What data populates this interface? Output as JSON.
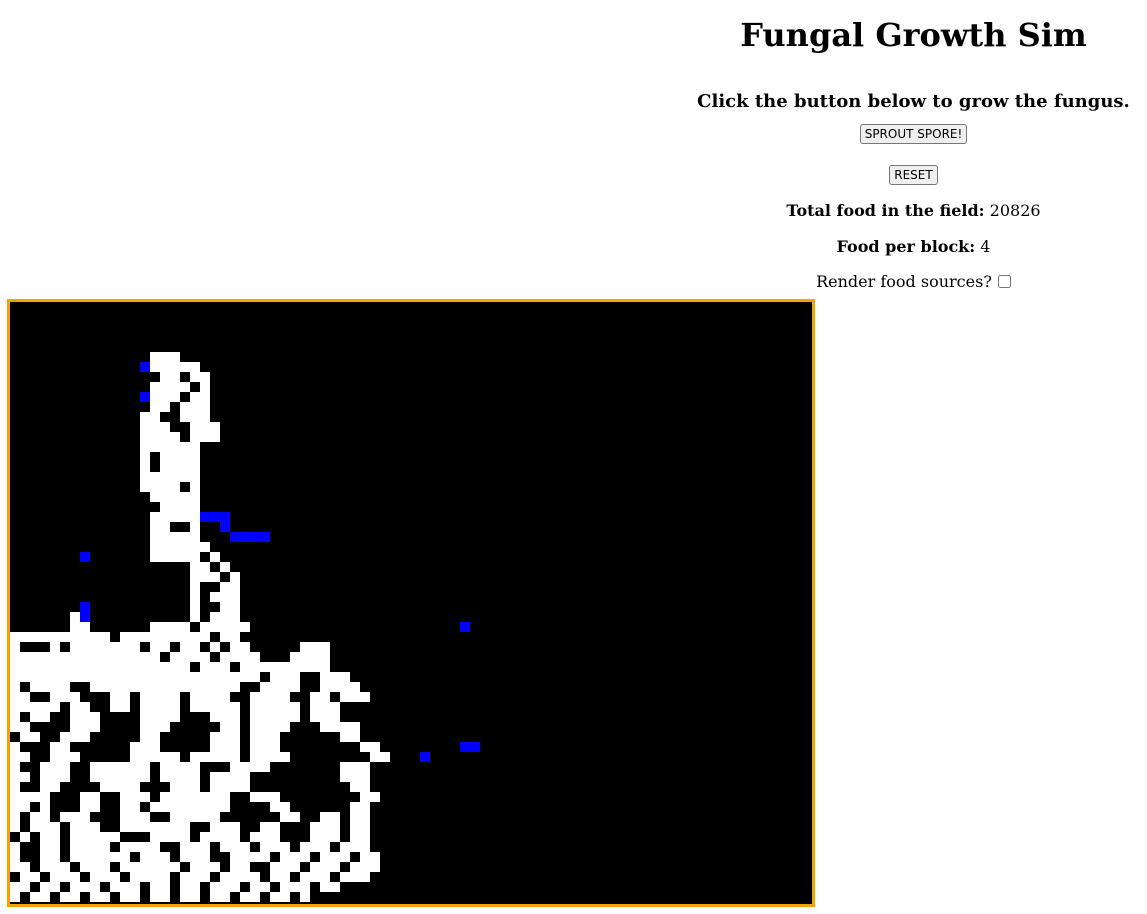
{
  "title": "Fungal Growth Sim",
  "subtitle": "Click the button below to grow the fungus.",
  "buttons": {
    "sprout": "SPROUT SPORE!",
    "reset": "RESET"
  },
  "stats": {
    "food_label": "Total food in the field:",
    "food_value": "20826",
    "per_block_label": "Food per block:",
    "per_block_value": "4",
    "render_label": "Render food sources?",
    "render_checked": false
  },
  "field": {
    "cols": 80,
    "rows": 60,
    "colors": {
      "background": "#000000",
      "fungus": "#ffffff",
      "tip": "#0000ff",
      "border": "#f5a300"
    },
    "fungus_rows": {
      "5": [
        [
          14,
          16
        ]
      ],
      "6": [
        [
          14,
          18
        ]
      ],
      "7": [
        [
          15,
          16
        ],
        [
          18,
          19
        ]
      ],
      "8": [
        [
          14,
          17
        ],
        [
          19,
          19
        ]
      ],
      "9": [
        [
          14,
          16
        ],
        [
          18,
          19
        ]
      ],
      "10": [
        [
          14,
          15
        ],
        [
          17,
          19
        ]
      ],
      "11": [
        [
          13,
          14
        ],
        [
          17,
          19
        ]
      ],
      "12": [
        [
          13,
          15
        ],
        [
          18,
          20
        ]
      ],
      "13": [
        [
          13,
          16
        ],
        [
          18,
          20
        ]
      ],
      "14": [
        [
          13,
          18
        ]
      ],
      "15": [
        [
          13,
          13
        ],
        [
          15,
          18
        ]
      ],
      "16": [
        [
          13,
          13
        ],
        [
          15,
          18
        ]
      ],
      "17": [
        [
          13,
          18
        ]
      ],
      "18": [
        [
          13,
          16
        ],
        [
          18,
          18
        ]
      ],
      "19": [
        [
          14,
          18
        ]
      ],
      "20": [
        [
          15,
          18
        ]
      ],
      "21": [
        [
          14,
          18
        ]
      ],
      "22": [
        [
          14,
          15
        ],
        [
          18,
          18
        ]
      ],
      "23": [
        [
          14,
          18
        ]
      ],
      "24": [
        [
          14,
          19
        ]
      ],
      "25": [
        [
          14,
          18
        ],
        [
          20,
          20
        ]
      ],
      "26": [
        [
          18,
          19
        ],
        [
          21,
          21
        ]
      ],
      "27": [
        [
          18,
          20
        ],
        [
          22,
          22
        ]
      ],
      "28": [
        [
          18,
          18
        ],
        [
          21,
          22
        ]
      ],
      "29": [
        [
          18,
          18
        ],
        [
          20,
          22
        ]
      ],
      "30": [
        [
          18,
          18
        ],
        [
          21,
          22
        ]
      ],
      "31": [
        [
          6,
          6
        ],
        [
          18,
          18
        ],
        [
          20,
          22
        ]
      ],
      "32": [
        [
          6,
          7
        ],
        [
          14,
          17
        ],
        [
          19,
          21
        ],
        [
          22,
          23
        ]
      ],
      "33": [
        [
          0,
          9
        ],
        [
          11,
          19
        ],
        [
          21,
          22
        ]
      ],
      "34": [
        [
          0,
          0
        ],
        [
          4,
          4
        ],
        [
          6,
          12
        ],
        [
          14,
          15
        ],
        [
          17,
          18
        ],
        [
          20,
          20
        ],
        [
          22,
          23
        ],
        [
          29,
          31
        ]
      ],
      "35": [
        [
          0,
          14
        ],
        [
          16,
          19
        ],
        [
          21,
          24
        ],
        [
          28,
          31
        ]
      ],
      "36": [
        [
          0,
          17
        ],
        [
          19,
          21
        ],
        [
          23,
          31
        ]
      ],
      "37": [
        [
          0,
          24
        ],
        [
          26,
          28
        ],
        [
          31,
          33
        ]
      ],
      "38": [
        [
          0,
          0
        ],
        [
          2,
          5
        ],
        [
          8,
          22
        ],
        [
          25,
          28
        ],
        [
          31,
          34
        ]
      ],
      "39": [
        [
          0,
          1
        ],
        [
          4,
          6
        ],
        [
          10,
          11
        ],
        [
          13,
          16
        ],
        [
          18,
          21
        ],
        [
          24,
          27
        ],
        [
          30,
          31
        ],
        [
          33,
          35
        ]
      ],
      "40": [
        [
          0,
          4
        ],
        [
          6,
          7
        ],
        [
          10,
          11
        ],
        [
          13,
          16
        ],
        [
          18,
          22
        ],
        [
          24,
          28
        ],
        [
          30,
          32
        ]
      ],
      "41": [
        [
          0,
          0
        ],
        [
          2,
          3
        ],
        [
          6,
          8
        ],
        [
          13,
          16
        ],
        [
          20,
          22
        ],
        [
          24,
          28
        ],
        [
          30,
          32
        ]
      ],
      "42": [
        [
          0,
          1
        ],
        [
          6,
          8
        ],
        [
          13,
          15
        ],
        [
          21,
          22
        ],
        [
          24,
          27
        ],
        [
          31,
          34
        ]
      ],
      "43": [
        [
          1,
          2
        ],
        [
          5,
          7
        ],
        [
          13,
          14
        ],
        [
          20,
          22
        ],
        [
          24,
          26
        ],
        [
          33,
          34
        ]
      ],
      "44": [
        [
          0,
          0
        ],
        [
          4,
          5
        ],
        [
          12,
          14
        ],
        [
          20,
          22
        ],
        [
          24,
          26
        ],
        [
          35,
          36
        ]
      ],
      "45": [
        [
          0,
          1
        ],
        [
          4,
          6
        ],
        [
          12,
          16
        ],
        [
          18,
          22
        ],
        [
          24,
          27
        ],
        [
          36,
          37
        ]
      ],
      "46": [
        [
          0,
          0
        ],
        [
          3,
          5
        ],
        [
          8,
          13
        ],
        [
          15,
          18
        ],
        [
          22,
          25
        ],
        [
          33,
          35
        ]
      ],
      "47": [
        [
          0,
          1
        ],
        [
          3,
          5
        ],
        [
          8,
          13
        ],
        [
          15,
          18
        ],
        [
          20,
          23
        ],
        [
          33,
          35
        ]
      ],
      "48": [
        [
          0,
          0
        ],
        [
          3,
          4
        ],
        [
          9,
          12
        ],
        [
          16,
          18
        ],
        [
          20,
          23
        ],
        [
          34,
          35
        ]
      ],
      "49": [
        [
          0,
          1
        ],
        [
          2,
          3
        ],
        [
          7,
          8
        ],
        [
          11,
          13
        ],
        [
          15,
          21
        ],
        [
          24,
          26
        ],
        [
          35,
          36
        ]
      ],
      "50": [
        [
          0,
          1
        ],
        [
          3,
          3
        ],
        [
          7,
          8
        ],
        [
          11,
          12
        ],
        [
          14,
          21
        ],
        [
          26,
          27
        ],
        [
          34,
          35
        ]
      ],
      "51": [
        [
          0,
          0
        ],
        [
          2,
          3
        ],
        [
          5,
          7
        ],
        [
          11,
          13
        ],
        [
          16,
          20
        ],
        [
          27,
          28
        ],
        [
          31,
          32
        ],
        [
          34,
          35
        ]
      ],
      "52": [
        [
          0,
          0
        ],
        [
          2,
          4
        ],
        [
          6,
          8
        ],
        [
          11,
          17
        ],
        [
          20,
          22
        ],
        [
          25,
          26
        ],
        [
          30,
          32
        ],
        [
          34,
          35
        ]
      ],
      "53": [
        [
          1,
          1
        ],
        [
          3,
          4
        ],
        [
          6,
          10
        ],
        [
          14,
          17
        ],
        [
          19,
          22
        ],
        [
          24,
          26
        ],
        [
          30,
          32
        ],
        [
          34,
          35
        ]
      ],
      "54": [
        [
          0,
          0
        ],
        [
          3,
          4
        ],
        [
          6,
          9
        ],
        [
          11,
          14
        ],
        [
          17,
          19
        ],
        [
          21,
          23
        ],
        [
          25,
          27
        ],
        [
          29,
          31
        ],
        [
          33,
          35
        ]
      ],
      "55": [
        [
          0,
          0
        ],
        [
          3,
          4
        ],
        [
          6,
          11
        ],
        [
          13,
          15
        ],
        [
          17,
          19
        ],
        [
          22,
          25
        ],
        [
          27,
          29
        ],
        [
          31,
          33
        ],
        [
          35,
          36
        ]
      ],
      "56": [
        [
          0,
          1
        ],
        [
          3,
          5
        ],
        [
          7,
          9
        ],
        [
          11,
          16
        ],
        [
          18,
          20
        ],
        [
          22,
          23
        ],
        [
          26,
          28
        ],
        [
          30,
          32
        ],
        [
          34,
          36
        ]
      ],
      "57": [
        [
          1,
          2
        ],
        [
          4,
          6
        ],
        [
          8,
          10
        ],
        [
          12,
          15
        ],
        [
          17,
          19
        ],
        [
          21,
          24
        ],
        [
          26,
          27
        ],
        [
          29,
          31
        ],
        [
          33,
          35
        ]
      ],
      "58": [
        [
          0,
          1
        ],
        [
          3,
          4
        ],
        [
          6,
          8
        ],
        [
          10,
          12
        ],
        [
          14,
          15
        ],
        [
          17,
          18
        ],
        [
          20,
          22
        ],
        [
          24,
          25
        ],
        [
          27,
          29
        ],
        [
          31,
          32
        ]
      ],
      "59": [
        [
          0,
          0
        ],
        [
          2,
          3
        ],
        [
          5,
          6
        ],
        [
          8,
          9
        ],
        [
          11,
          12
        ],
        [
          14,
          15
        ],
        [
          17,
          18
        ],
        [
          20,
          21
        ],
        [
          23,
          24
        ],
        [
          26,
          27
        ],
        [
          29,
          29
        ]
      ]
    },
    "tips": [
      [
        13,
        6
      ],
      [
        13,
        9
      ],
      [
        19,
        21
      ],
      [
        20,
        21
      ],
      [
        21,
        21
      ],
      [
        21,
        22
      ],
      [
        22,
        23
      ],
      [
        23,
        23
      ],
      [
        24,
        23
      ],
      [
        25,
        23
      ],
      [
        7,
        25
      ],
      [
        7,
        30
      ],
      [
        7,
        31
      ],
      [
        45,
        32
      ],
      [
        45,
        44
      ],
      [
        46,
        44
      ],
      [
        41,
        45
      ]
    ]
  }
}
